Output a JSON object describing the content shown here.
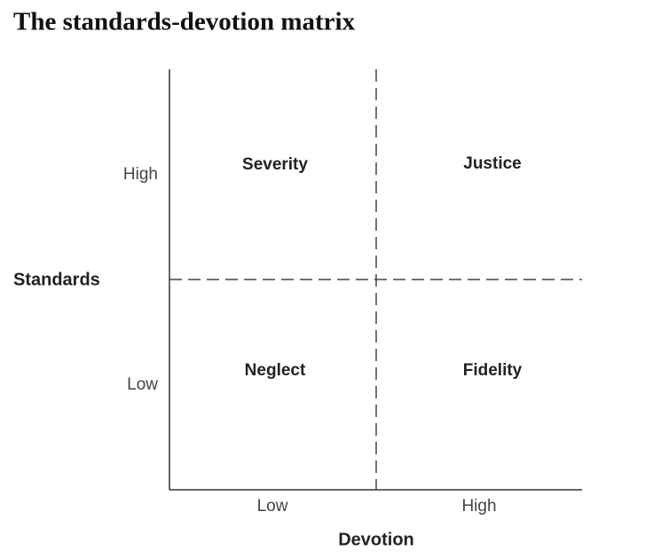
{
  "header": {
    "title": "The standards-devotion matrix"
  },
  "y_axis": {
    "label": "Standards",
    "levels": [
      "High",
      "Low"
    ]
  },
  "x_axis": {
    "label": "Devotion",
    "levels": [
      "Low",
      "High"
    ]
  },
  "quadrants": {
    "top_left": "Severity",
    "top_right": "Justice",
    "bottom_left": "Neglect",
    "bottom_right": "Fidelity"
  }
}
